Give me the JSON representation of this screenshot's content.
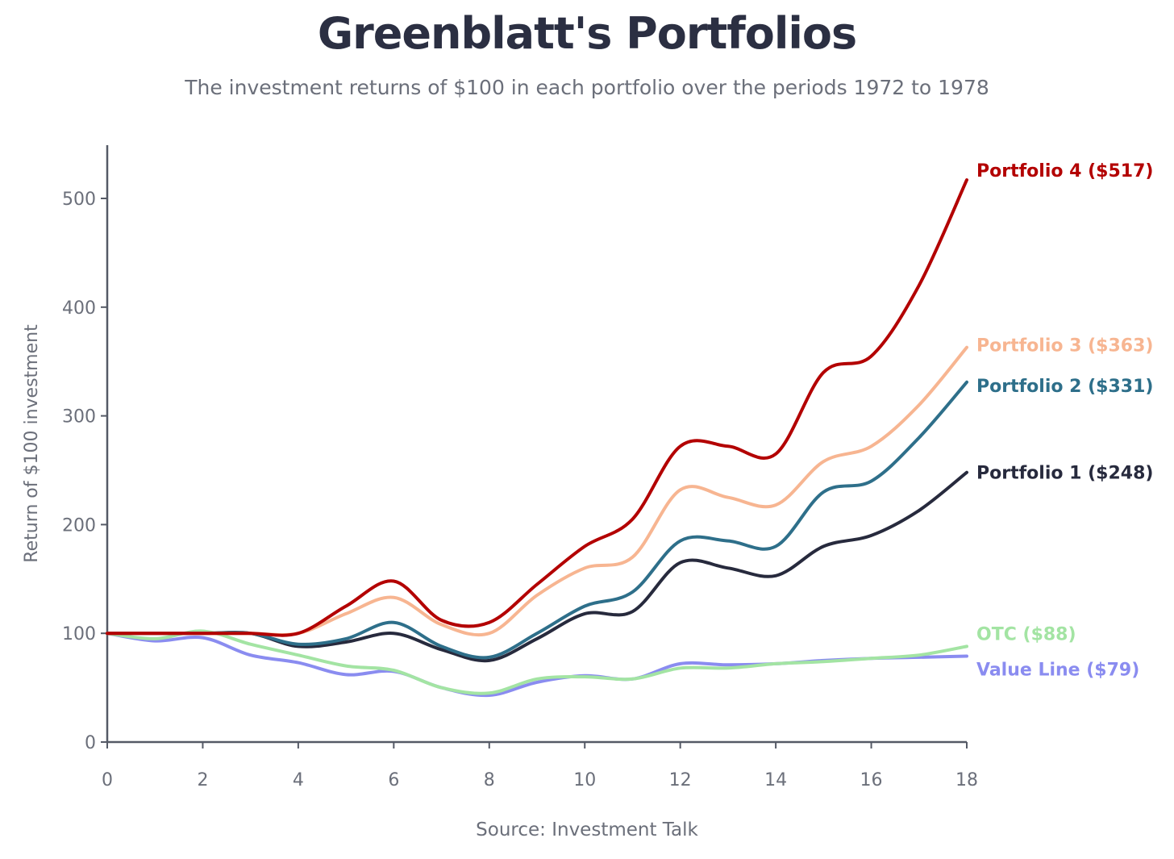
{
  "header": {
    "title": "Greenblatt's Portfolios",
    "subtitle": "The investment returns of $100 in each portfolio over the periods 1972 to 1978"
  },
  "footer": {
    "source": "Source: Investment Talk"
  },
  "chart_data": {
    "type": "line",
    "title": "Greenblatt's Portfolios",
    "subtitle": "The investment returns of $100 in each portfolio over the periods 1972 to 1978",
    "xlabel": "",
    "ylabel": "Return of $100 investment",
    "xlim": [
      0,
      18
    ],
    "ylim": [
      0,
      550
    ],
    "xticks": [
      0,
      2,
      4,
      6,
      8,
      10,
      12,
      14,
      16,
      18
    ],
    "yticks": [
      0,
      100,
      200,
      300,
      400,
      500
    ],
    "grid": false,
    "legend": "inline-right",
    "x": [
      0,
      1,
      2,
      3,
      4,
      5,
      6,
      7,
      8,
      9,
      10,
      11,
      12,
      13,
      14,
      15,
      16,
      17,
      18
    ],
    "series": [
      {
        "name": "Portfolio 4 ($517)",
        "color": "#b30000",
        "values": [
          100,
          100,
          100,
          100,
          100,
          125,
          148,
          112,
          110,
          145,
          180,
          205,
          272,
          272,
          265,
          340,
          355,
          420,
          517
        ]
      },
      {
        "name": "Portfolio 3 ($363)",
        "color": "#f7b591",
        "values": [
          100,
          100,
          100,
          100,
          100,
          118,
          133,
          108,
          100,
          135,
          160,
          170,
          232,
          225,
          218,
          258,
          272,
          310,
          363
        ]
      },
      {
        "name": "Portfolio 2 ($331)",
        "color": "#2e6f8a",
        "values": [
          100,
          100,
          100,
          100,
          90,
          95,
          110,
          88,
          78,
          100,
          125,
          138,
          185,
          185,
          180,
          230,
          240,
          280,
          331
        ]
      },
      {
        "name": "Portfolio 1 ($248)",
        "color": "#272a3d",
        "values": [
          100,
          100,
          100,
          100,
          88,
          92,
          100,
          85,
          75,
          95,
          118,
          120,
          165,
          160,
          153,
          180,
          190,
          213,
          248
        ]
      },
      {
        "name": "OTC ($88)",
        "color": "#a3e4a3",
        "values": [
          100,
          95,
          102,
          90,
          80,
          70,
          66,
          50,
          45,
          58,
          60,
          58,
          68,
          68,
          72,
          74,
          77,
          80,
          88
        ]
      },
      {
        "name": "Value Line ($79)",
        "color": "#8a8cf0",
        "values": [
          100,
          93,
          96,
          80,
          73,
          62,
          65,
          50,
          43,
          55,
          61,
          58,
          72,
          71,
          72,
          75,
          77,
          78,
          79
        ]
      }
    ]
  }
}
